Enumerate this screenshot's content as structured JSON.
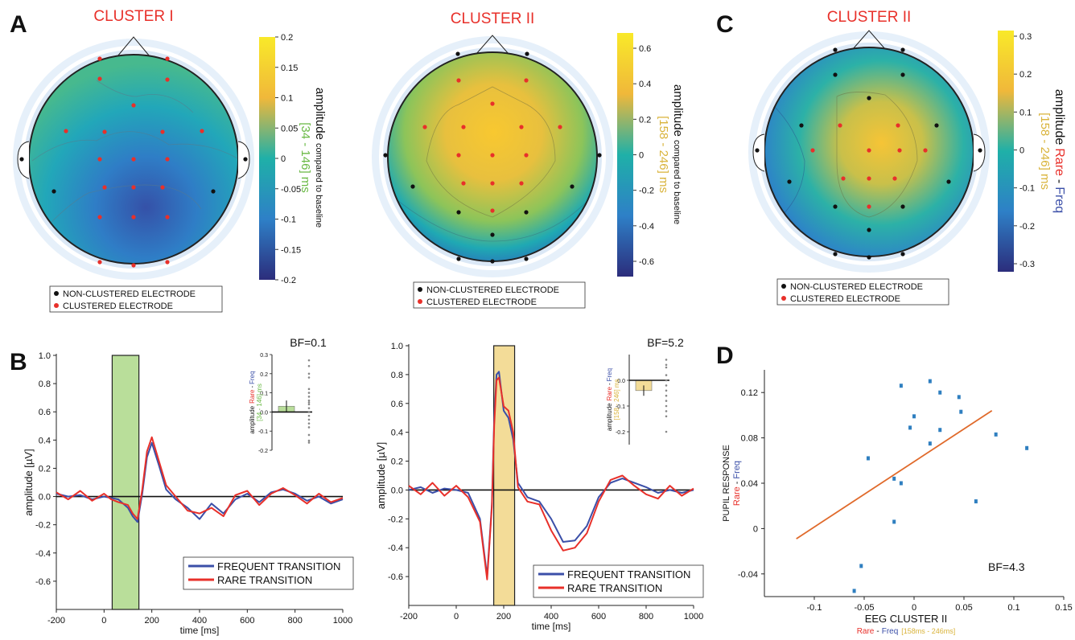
{
  "panel_letters": {
    "a": "A",
    "b": "B",
    "c": "C",
    "d": "D"
  },
  "colors": {
    "red": "#e8302a",
    "blue": "#3b4fa8",
    "green": "#6ab945",
    "gold": "#d9b33a",
    "fit": "#e06a2b",
    "point": "#2f7fc0"
  },
  "legend_topo": {
    "non_clustered": "NON-CLUSTERED ELECTRODE",
    "clustered": "CLUSTERED ELECTRODE"
  },
  "legend_erp": {
    "frequent": "FREQUENT TRANSITION",
    "rare": "RARE TRANSITION"
  },
  "topo_a": {
    "title": "CLUSTER I",
    "colorbar": {
      "ticks": [
        "0.2",
        "0.15",
        "0.1",
        "0.05",
        "0",
        "-0.05",
        "-0.1",
        "-0.15",
        "-0.2"
      ],
      "label_main": "amplitude",
      "label_sub": "compared to baseline",
      "label_window": "[34 - 146] ms"
    }
  },
  "topo_b": {
    "title": "CLUSTER II",
    "colorbar": {
      "ticks": [
        "0.6",
        "0.4",
        "0.2",
        "0",
        "-0.2",
        "-0.4",
        "-0.6"
      ],
      "label_main": "amplitude",
      "label_sub": "compared to baseline",
      "label_window": "[158 - 246] ms"
    }
  },
  "topo_c": {
    "title": "CLUSTER II",
    "colorbar": {
      "ticks": [
        "0.3",
        "0.2",
        "0.1",
        "0",
        "-0.1",
        "-0.2",
        "-0.3"
      ],
      "label_main": "amplitude",
      "label_rare": "Rare",
      "label_dash": "-",
      "label_freq": "Freq",
      "label_window": "[158 - 246] ms"
    }
  },
  "erp_axes": {
    "ylabel": "amplitude [µV]",
    "xlabel": "time [ms]",
    "y_ticks": [
      "1.0",
      "0.8",
      "0.6",
      "0.4",
      "0.2",
      "0.0",
      "-0.2",
      "-0.4",
      "-0.6"
    ],
    "x_ticks": [
      "-200",
      "0",
      "200",
      "400",
      "600",
      "800",
      "1000"
    ]
  },
  "inset_1": {
    "bf": "BF=0.1",
    "y_ticks": [
      "0.3",
      "0.2",
      "0.1",
      "0.0",
      "-0.1",
      "-0.2"
    ],
    "label_amp": "amplitude",
    "label_rare": "Rare",
    "label_freq": "Freq",
    "label_dash": "-",
    "label_window": "[34 - 146] ms"
  },
  "inset_2": {
    "bf": "BF=5.2",
    "y_ticks": [
      "0.0",
      "-0.1",
      "-0.2"
    ],
    "label_amp": "amplitude",
    "label_rare": "Rare",
    "label_freq": "Freq",
    "label_dash": "-",
    "label_window": "[158 - 246] ms"
  },
  "scatter": {
    "bf": "BF=4.3",
    "ylabel_main": "PUPIL RESPONSE",
    "ylabel_rare": "Rare",
    "ylabel_dash": "-",
    "ylabel_freq": "Freq",
    "xlabel_main": "EEG CLUSTER II",
    "xlabel_rare": "Rare",
    "xlabel_dash": "-",
    "xlabel_freq": "Freq",
    "xlabel_window": "[158ms - 246ms]",
    "x_ticks": [
      "-0.1",
      "-0.05",
      "0",
      "0.05",
      "0.1",
      "0.15"
    ],
    "y_ticks": [
      "0.12",
      "0.08",
      "0.04",
      "0",
      "-0.04"
    ]
  },
  "chart_data": [
    {
      "type": "line",
      "panel": "B-left",
      "xlabel": "time [ms]",
      "ylabel": "amplitude [µV]",
      "xlim": [
        -200,
        1000
      ],
      "ylim": [
        -0.8,
        1.0
      ],
      "highlight_window": [
        34,
        146
      ],
      "series": [
        {
          "name": "FREQUENT TRANSITION",
          "x": [
            -200,
            -150,
            -100,
            -50,
            0,
            30,
            60,
            100,
            120,
            140,
            160,
            180,
            200,
            230,
            260,
            300,
            350,
            400,
            450,
            500,
            550,
            600,
            650,
            700,
            750,
            800,
            850,
            900,
            950,
            1000
          ],
          "y": [
            0.02,
            0.0,
            0.01,
            -0.02,
            0.0,
            -0.01,
            -0.02,
            -0.08,
            -0.14,
            -0.18,
            0.02,
            0.28,
            0.38,
            0.22,
            0.05,
            -0.02,
            -0.08,
            -0.16,
            -0.05,
            -0.12,
            -0.02,
            0.02,
            -0.04,
            0.03,
            0.05,
            0.02,
            -0.03,
            0.0,
            -0.05,
            -0.02
          ]
        },
        {
          "name": "RARE TRANSITION",
          "x": [
            -200,
            -150,
            -100,
            -50,
            0,
            30,
            60,
            100,
            120,
            140,
            160,
            180,
            200,
            230,
            260,
            300,
            350,
            400,
            450,
            500,
            550,
            600,
            650,
            700,
            750,
            800,
            850,
            900,
            950,
            1000
          ],
          "y": [
            0.03,
            -0.02,
            0.04,
            -0.03,
            0.02,
            -0.02,
            -0.04,
            -0.06,
            -0.12,
            -0.16,
            0.05,
            0.32,
            0.42,
            0.25,
            0.08,
            0.0,
            -0.1,
            -0.12,
            -0.08,
            -0.14,
            0.01,
            0.04,
            -0.06,
            0.02,
            0.06,
            0.01,
            -0.05,
            0.02,
            -0.04,
            -0.01
          ]
        }
      ],
      "inset": {
        "type": "bar",
        "values": [
          0.03
        ],
        "error": [
          0.03
        ],
        "ylim": [
          -0.2,
          0.3
        ],
        "points": [
          0.27,
          0.24,
          0.2,
          0.18,
          0.12,
          0.1,
          0.08,
          0.06,
          0.05,
          0.04,
          0.02,
          0.0,
          -0.02,
          -0.04,
          -0.06,
          -0.08,
          -0.12,
          -0.15,
          -0.16
        ]
      }
    },
    {
      "type": "line",
      "panel": "B-right",
      "xlabel": "time [ms]",
      "ylabel": "amplitude [µV]",
      "xlim": [
        -200,
        1000
      ],
      "ylim": [
        -0.8,
        1.0
      ],
      "highlight_window": [
        158,
        246
      ],
      "series": [
        {
          "name": "FREQUENT TRANSITION",
          "x": [
            -200,
            -150,
            -100,
            -50,
            0,
            50,
            100,
            130,
            150,
            160,
            170,
            180,
            200,
            220,
            240,
            260,
            300,
            350,
            400,
            450,
            500,
            550,
            600,
            650,
            700,
            750,
            800,
            850,
            900,
            950,
            1000
          ],
          "y": [
            0.0,
            0.02,
            -0.02,
            0.01,
            0.0,
            -0.02,
            -0.2,
            -0.6,
            -0.1,
            0.5,
            0.8,
            0.82,
            0.55,
            0.5,
            0.35,
            0.05,
            -0.05,
            -0.08,
            -0.2,
            -0.36,
            -0.35,
            -0.25,
            -0.05,
            0.05,
            0.08,
            0.05,
            0.02,
            -0.02,
            0.0,
            -0.02,
            0.0
          ]
        },
        {
          "name": "RARE TRANSITION",
          "x": [
            -200,
            -150,
            -100,
            -50,
            0,
            50,
            100,
            130,
            150,
            160,
            170,
            180,
            200,
            220,
            240,
            260,
            300,
            350,
            400,
            450,
            500,
            550,
            600,
            650,
            700,
            750,
            800,
            850,
            900,
            950,
            1000
          ],
          "y": [
            0.03,
            -0.03,
            0.05,
            -0.04,
            0.03,
            -0.05,
            -0.22,
            -0.62,
            -0.12,
            0.45,
            0.76,
            0.78,
            0.58,
            0.55,
            0.4,
            0.02,
            -0.08,
            -0.1,
            -0.28,
            -0.42,
            -0.4,
            -0.3,
            -0.08,
            0.07,
            0.1,
            0.03,
            -0.03,
            -0.06,
            0.03,
            -0.04,
            0.01
          ]
        }
      ],
      "inset": {
        "type": "bar",
        "values": [
          -0.04
        ],
        "error": [
          0.02
        ],
        "ylim": [
          -0.25,
          0.1
        ],
        "points": [
          0.08,
          0.06,
          0.05,
          0.02,
          0.0,
          -0.02,
          -0.04,
          -0.06,
          -0.08,
          -0.1,
          -0.12,
          -0.14,
          -0.2
        ]
      }
    },
    {
      "type": "scatter",
      "panel": "D",
      "xlabel": "EEG CLUSTER II",
      "ylabel": "PUPIL RESPONSE",
      "xlim": [
        -0.15,
        0.15
      ],
      "ylim": [
        -0.06,
        0.14
      ],
      "points": [
        [
          -0.06,
          -0.055
        ],
        [
          -0.053,
          -0.033
        ],
        [
          -0.046,
          0.062
        ],
        [
          -0.02,
          0.044
        ],
        [
          -0.02,
          0.006
        ],
        [
          -0.013,
          0.04
        ],
        [
          -0.013,
          0.126
        ],
        [
          -0.004,
          0.089
        ],
        [
          0.0,
          0.099
        ],
        [
          0.016,
          0.13
        ],
        [
          0.016,
          0.075
        ],
        [
          0.026,
          0.12
        ],
        [
          0.026,
          0.087
        ],
        [
          0.045,
          0.116
        ],
        [
          0.047,
          0.103
        ],
        [
          0.062,
          0.024
        ],
        [
          0.082,
          0.083
        ],
        [
          0.113,
          0.071
        ]
      ],
      "fit_line": {
        "x": [
          -0.118,
          0.078
        ],
        "y": [
          -0.009,
          0.104
        ]
      },
      "annotation": "BF=4.3"
    }
  ]
}
